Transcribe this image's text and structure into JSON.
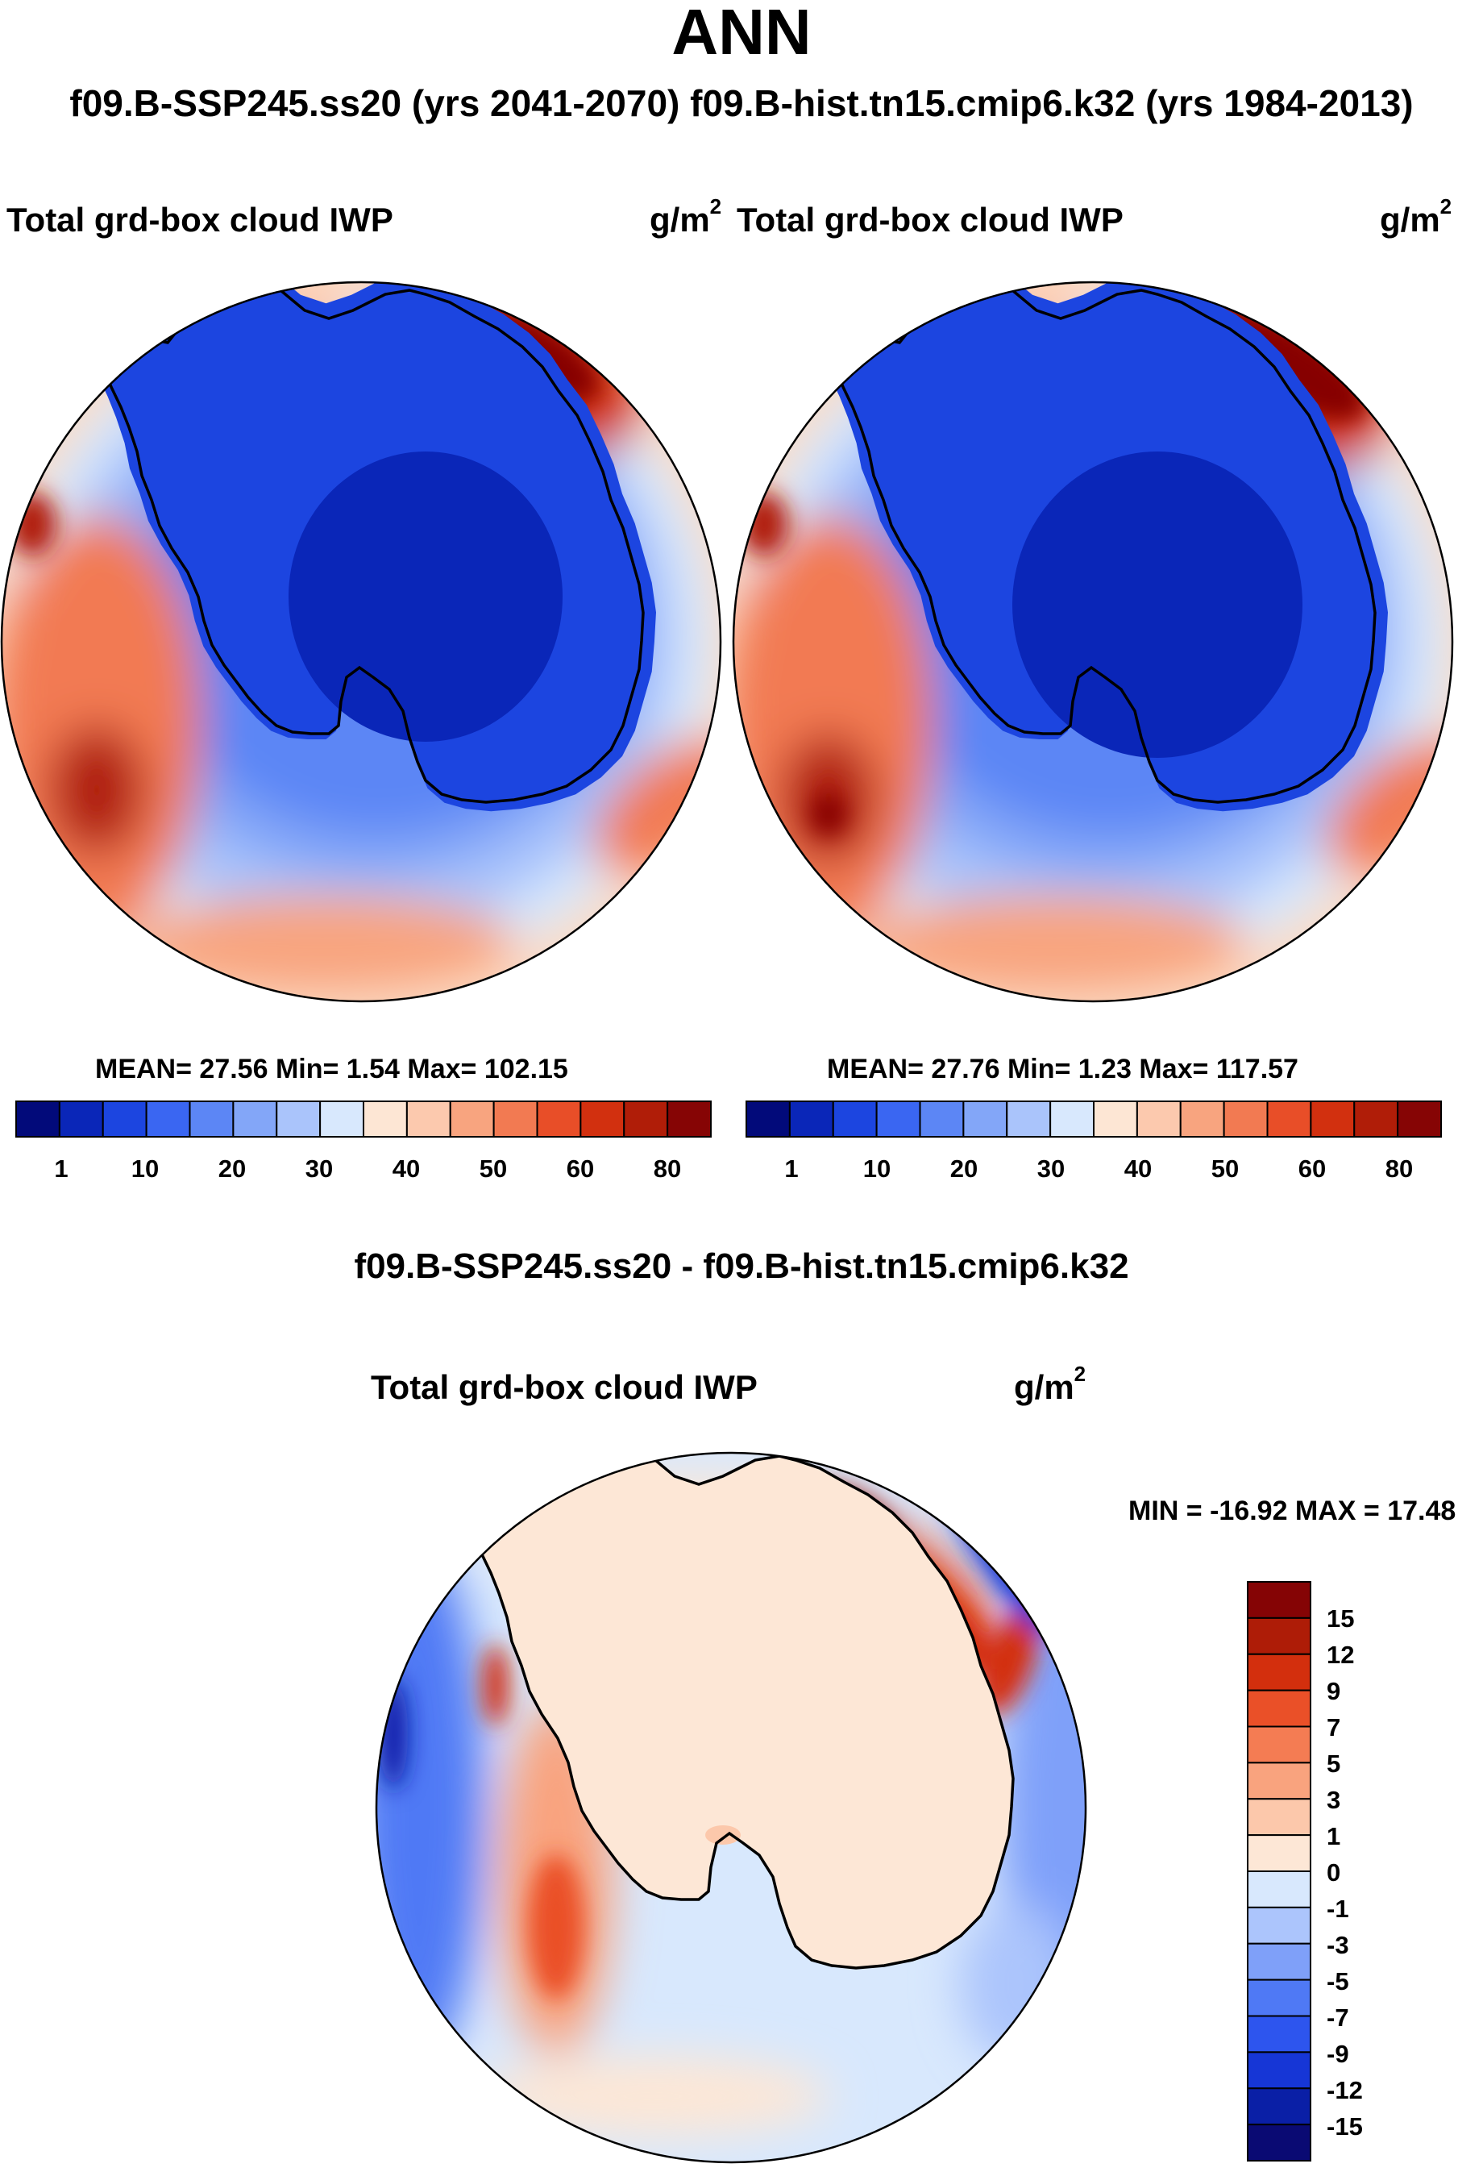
{
  "figure": {
    "season": "ANN",
    "case_line": "f09.B-SSP245.ss20 (yrs 2041-2070)  f09.B-hist.tn15.cmip6.k32 (yrs 1984-2013)",
    "diff_title": "f09.B-SSP245.ss20 - f09.B-hist.tn15.cmip6.k32"
  },
  "panels": [
    {
      "id": "test",
      "variable": "Total grd-box cloud IWP",
      "unit_base": "g/m",
      "unit_exp": "2",
      "stats": "MEAN=  27.56  Min=    1.54  Max= 102.15"
    },
    {
      "id": "control",
      "variable": "Total grd-box cloud IWP",
      "unit_base": "g/m",
      "unit_exp": "2",
      "stats": "MEAN=  27.76  Min=    1.23  Max= 117.57"
    },
    {
      "id": "difference",
      "variable": "Total grd-box cloud IWP",
      "unit_base": "g/m",
      "unit_exp": "2",
      "stats": "MIN = -16.92 MAX =  17.48"
    }
  ],
  "colorbar_abs": {
    "colors": [
      "#020a7a",
      "#0a26b8",
      "#1c45e0",
      "#3a66f2",
      "#5c86f5",
      "#83a6f8",
      "#aac4fb",
      "#d8e8fd",
      "#fde6d4",
      "#fcc9ae",
      "#f8a47f",
      "#f27a52",
      "#e84e28",
      "#d2300f",
      "#b01d08",
      "#860505"
    ],
    "labels": [
      "1",
      "10",
      "20",
      "30",
      "40",
      "50",
      "60",
      "80"
    ]
  },
  "colorbar_diff": {
    "colors": [
      "#0a0a73",
      "#0a1fa6",
      "#1636d6",
      "#2d55ee",
      "#4f79f5",
      "#7fa0f9",
      "#acc5fc",
      "#d8e8fd",
      "#fde7d6",
      "#fcc8ab",
      "#f9a37e",
      "#f47c53",
      "#ea5028",
      "#d32f0d",
      "#ae1c07",
      "#850405"
    ],
    "labels": [
      "15",
      "12",
      "9",
      "7",
      "5",
      "3",
      "1",
      "0",
      "-1",
      "-3",
      "-5",
      "-7",
      "-9",
      "-12",
      "-15"
    ]
  }
}
